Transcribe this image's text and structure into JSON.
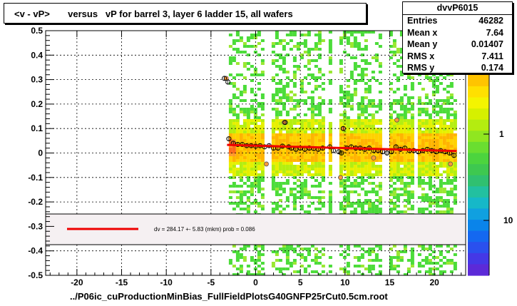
{
  "title": "<v - vP>       versus   vP for barrel 3, layer 6 ladder 15, all wafers",
  "x_axis_title": "../P06ic_cuProductionMinBias_FullFieldPlotsG40GNFP25rCut0.5cm.root",
  "stats": {
    "name": "dvvP6015",
    "rows": [
      {
        "key": "Entries",
        "value": "46282"
      },
      {
        "key": "Mean x",
        "value": "7.64"
      },
      {
        "key": "Mean y",
        "value": "0.01407"
      },
      {
        "key": "RMS x",
        "value": "7.411"
      },
      {
        "key": "RMS y",
        "value": "0.174"
      }
    ]
  },
  "fit_legend": "dv =  284.17 +-  5.83 (mkm) prob = 0.086",
  "colors": {
    "fit_line": "#ee0000",
    "legend_fill": "#f5f0f2",
    "frame": "#000000"
  },
  "chart_data": {
    "type": "heatmap",
    "xlim": [
      -23.5,
      23.5
    ],
    "ylim": [
      -0.5,
      0.5
    ],
    "x_ticks": [
      -20,
      -15,
      -10,
      -5,
      0,
      5,
      10,
      15,
      20
    ],
    "x_tick_labels": [
      "-20",
      "-15",
      "-10",
      "-5",
      "0",
      "5",
      "10",
      "15",
      "20"
    ],
    "y_ticks": [
      -0.5,
      -0.4,
      -0.3,
      -0.2,
      -0.1,
      0,
      0.1,
      0.2,
      0.3,
      0.4,
      0.5
    ],
    "y_tick_labels": [
      "-0.5",
      "-0.4",
      "-0.3",
      "-0.2",
      "-0.1",
      "0",
      "0.1",
      "0.2",
      "0.3",
      "0.4",
      "0.5"
    ],
    "grid": true,
    "color_scale": {
      "type": "log",
      "tick_labels": [
        "1",
        "10"
      ]
    },
    "fill_region": {
      "x": [
        -3,
        22.5
      ],
      "y": [
        -0.5,
        0.5
      ]
    },
    "gap_columns_x": [
      1.3,
      8.0,
      9.0,
      14.6,
      18.0
    ],
    "profile_points": [
      {
        "x": -3.5,
        "y": 0.305
      },
      {
        "x": -3.1,
        "y": 0.29
      },
      {
        "x": -3.0,
        "y": 0.058
      },
      {
        "x": -2.5,
        "y": 0.04
      },
      {
        "x": -2.0,
        "y": 0.035
      },
      {
        "x": -1.5,
        "y": 0.035
      },
      {
        "x": -1.0,
        "y": 0.03
      },
      {
        "x": -0.5,
        "y": 0.03
      },
      {
        "x": 0.0,
        "y": 0.028
      },
      {
        "x": 0.5,
        "y": 0.03
      },
      {
        "x": 1.0,
        "y": 0.025
      },
      {
        "x": 1.5,
        "y": 0.03
      },
      {
        "x": 2.0,
        "y": 0.02
      },
      {
        "x": 2.5,
        "y": 0.02
      },
      {
        "x": 3.0,
        "y": 0.028
      },
      {
        "x": 3.3,
        "y": 0.125
      },
      {
        "x": 3.7,
        "y": 0.025
      },
      {
        "x": 4.0,
        "y": 0.02
      },
      {
        "x": 4.5,
        "y": 0.015
      },
      {
        "x": 5.0,
        "y": 0.02
      },
      {
        "x": 5.5,
        "y": 0.015
      },
      {
        "x": 6.0,
        "y": 0.02
      },
      {
        "x": 6.5,
        "y": 0.018
      },
      {
        "x": 7.0,
        "y": 0.015
      },
      {
        "x": 7.5,
        "y": 0.02
      },
      {
        "x": 8.3,
        "y": 0.025
      },
      {
        "x": 8.7,
        "y": 0.01
      },
      {
        "x": 9.3,
        "y": 0.005
      },
      {
        "x": 9.6,
        "y": 0.0
      },
      {
        "x": 9.8,
        "y": 0.1
      },
      {
        "x": 10.2,
        "y": 0.02
      },
      {
        "x": 10.7,
        "y": 0.025
      },
      {
        "x": 11.2,
        "y": 0.02
      },
      {
        "x": 11.7,
        "y": 0.02
      },
      {
        "x": 12.2,
        "y": 0.015
      },
      {
        "x": 12.7,
        "y": 0.02
      },
      {
        "x": 13.2,
        "y": 0.01
      },
      {
        "x": 13.7,
        "y": 0.01
      },
      {
        "x": 14.2,
        "y": 0.005
      },
      {
        "x": 14.7,
        "y": 0.0
      },
      {
        "x": 15.2,
        "y": 0.005
      },
      {
        "x": 15.7,
        "y": 0.025
      },
      {
        "x": 16.2,
        "y": 0.015
      },
      {
        "x": 16.7,
        "y": 0.02
      },
      {
        "x": 17.2,
        "y": 0.01
      },
      {
        "x": 17.7,
        "y": 0.01
      },
      {
        "x": 18.2,
        "y": 0.005
      },
      {
        "x": 18.7,
        "y": 0.01
      },
      {
        "x": 19.2,
        "y": 0.015
      },
      {
        "x": 19.7,
        "y": 0.01
      },
      {
        "x": 20.2,
        "y": 0.005
      },
      {
        "x": 20.7,
        "y": 0.01
      },
      {
        "x": 21.2,
        "y": 0.005
      },
      {
        "x": 21.7,
        "y": 0.0
      },
      {
        "x": 22.2,
        "y": -0.01
      }
    ],
    "outlier_points": [
      {
        "x": -3.3,
        "y": 0.305
      },
      {
        "x": 3.2,
        "y": 0.125
      },
      {
        "x": 1.2,
        "y": -0.045
      },
      {
        "x": 9.5,
        "y": -0.1
      },
      {
        "x": 9.8,
        "y": 0.1
      },
      {
        "x": 13.2,
        "y": -0.02
      },
      {
        "x": 15.8,
        "y": 0.135
      },
      {
        "x": 21.8,
        "y": -0.045
      }
    ],
    "fit_line": {
      "x": [
        -3.2,
        22.5
      ],
      "y": [
        0.033,
        0.008
      ]
    }
  }
}
